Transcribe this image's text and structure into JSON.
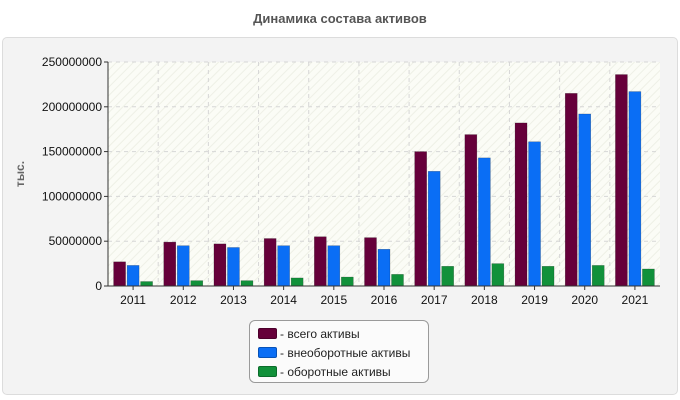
{
  "chart_data": {
    "type": "bar",
    "title": "Динамика состава активов",
    "xlabel": "",
    "ylabel": "тыс.",
    "categories": [
      "2011",
      "2012",
      "2013",
      "2014",
      "2015",
      "2016",
      "2017",
      "2018",
      "2019",
      "2020",
      "2021"
    ],
    "ylim": [
      0,
      250000000
    ],
    "yticks": [
      "0",
      "50000000",
      "100000000",
      "150000000",
      "200000000",
      "250000000"
    ],
    "ytick_values": [
      0,
      50000000,
      100000000,
      150000000,
      200000000,
      250000000
    ],
    "grid": true,
    "legend_position": "bottom",
    "series": [
      {
        "name": "- всего активы",
        "color": "#66003a",
        "values": [
          27000000,
          49000000,
          47000000,
          53000000,
          55000000,
          54000000,
          150000000,
          169000000,
          182000000,
          215000000,
          236000000
        ]
      },
      {
        "name": "- внеоборотные активы",
        "color": "#0a6ef5",
        "values": [
          23000000,
          45000000,
          43000000,
          45000000,
          45000000,
          41000000,
          128000000,
          143000000,
          161000000,
          192000000,
          217000000
        ]
      },
      {
        "name": "- оборотные активы",
        "color": "#11913a",
        "values": [
          5000000,
          6000000,
          6000000,
          9000000,
          10000000,
          13000000,
          22000000,
          25000000,
          22000000,
          23000000,
          19000000
        ]
      }
    ]
  }
}
